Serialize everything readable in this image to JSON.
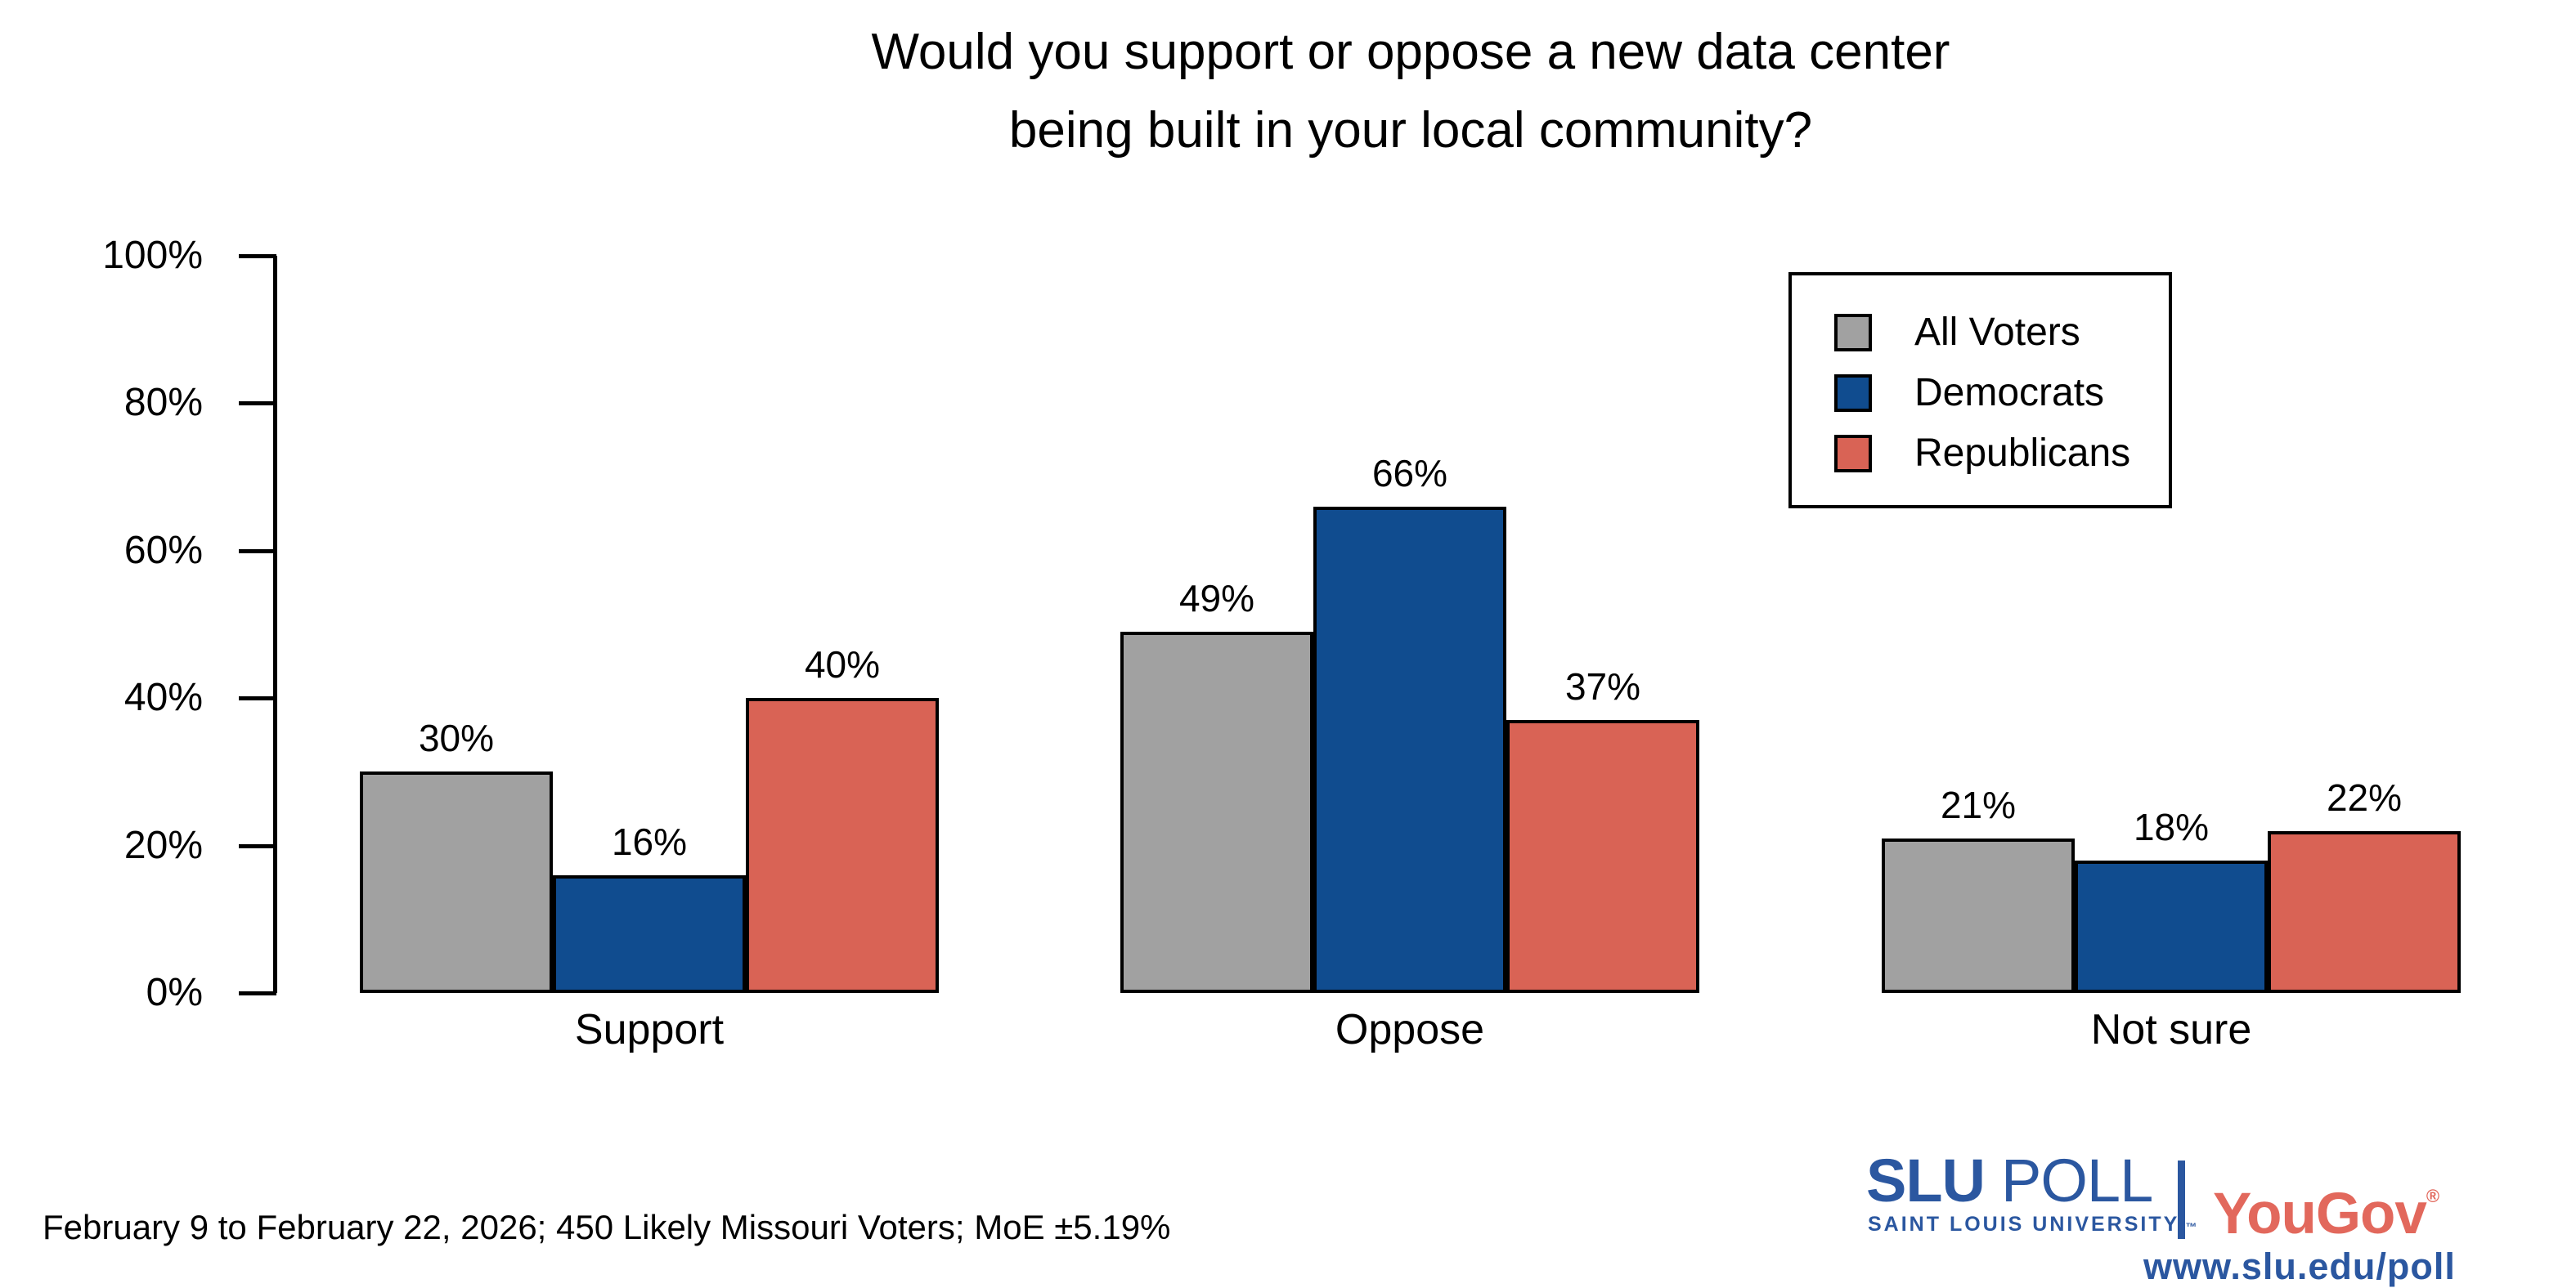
{
  "title": {
    "line1": "Would you support or oppose a new data center",
    "line2": "being built in your local community?"
  },
  "chart_data": {
    "type": "bar",
    "title": "Would you support or oppose a new data center being built in your local community?",
    "categories": [
      "Support",
      "Oppose",
      "Not sure"
    ],
    "series": [
      {
        "name": "All Voters",
        "color": "#A1A1A1",
        "values": [
          30,
          49,
          21
        ]
      },
      {
        "name": "Democrats",
        "color": "#104C8F",
        "values": [
          16,
          66,
          18
        ]
      },
      {
        "name": "Republicans",
        "color": "#D96355",
        "values": [
          40,
          37,
          22
        ]
      }
    ],
    "value_suffix": "%",
    "yticks": [
      0,
      20,
      40,
      60,
      80,
      100
    ],
    "ytick_labels": [
      "0%",
      "20%",
      "40%",
      "60%",
      "80%",
      "100%"
    ],
    "ylim": [
      0,
      100
    ],
    "grid": false,
    "legend_position": "top-right",
    "bar_outline": "#000000",
    "xlabel": "",
    "ylabel": ""
  },
  "legend": {
    "items": [
      {
        "label": "All Voters",
        "color": "#A1A1A1"
      },
      {
        "label": "Democrats",
        "color": "#104C8F"
      },
      {
        "label": "Republicans",
        "color": "#D96355"
      }
    ]
  },
  "footer": {
    "note": "February 9 to February 22, 2026; 450 Likely Missouri Voters; MoE ±5.19%"
  },
  "branding": {
    "slu": "SLU",
    "poll": "POLL",
    "university": "SAINT LOUIS UNIVERSITY.",
    "tm": "™",
    "yougov": "YouGov",
    "registered": "®",
    "url": "www.slu.edu/poll",
    "slu_blue": "#2B57A0",
    "yougov_red": "#E2685C"
  }
}
